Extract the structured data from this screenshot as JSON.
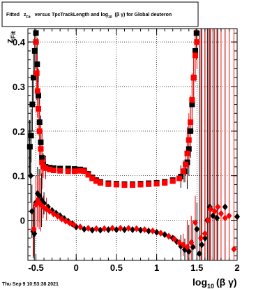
{
  "title_parts": {
    "prefix": "Fitted",
    "z": "z",
    "z_sub": "Fit",
    "middle": "versus TpcTrackLength and log",
    "log_sub": "10",
    "suffix": "(β  γ) for Global deuteron"
  },
  "y_axis_label": {
    "main": "z",
    "sub": "Fit"
  },
  "x_axis_label": {
    "main": "log",
    "sub": "10",
    "rest": "(β γ)"
  },
  "timestamp": "Thu Sep  9 10:53:38 2021",
  "chart_data": {
    "type": "scatter",
    "title": "Fitted z_Fit versus TpcTrackLength and log10(β γ) for Global deuteron",
    "xlabel": "log10(β γ)",
    "ylabel": "z_Fit",
    "xlim": [
      -0.6,
      2.0
    ],
    "ylim": [
      -0.09,
      0.43
    ],
    "x_ticks": [
      "-0.5",
      "0",
      "0.5",
      "1",
      "1.5",
      "2"
    ],
    "x_tick_values": [
      -0.5,
      0,
      0.5,
      1,
      1.5,
      2
    ],
    "y_ticks": [
      "0",
      "0.1",
      "0.2",
      "0.3",
      "0.4"
    ],
    "y_tick_values": [
      0,
      0.1,
      0.2,
      0.3,
      0.4
    ],
    "grid": true,
    "series": [
      {
        "color": "#000000",
        "marker": "square",
        "points": [
          [
            -0.575,
            0.165
          ],
          [
            -0.56,
            0.19
          ],
          [
            -0.545,
            0.26
          ],
          [
            -0.53,
            0.32
          ],
          [
            -0.515,
            0.38
          ],
          [
            -0.5,
            0.42
          ],
          [
            -0.485,
            0.35
          ],
          [
            -0.47,
            0.28
          ],
          [
            -0.455,
            0.22
          ],
          [
            -0.44,
            0.175
          ],
          [
            -0.425,
            0.14
          ],
          [
            -0.41,
            0.125
          ],
          [
            -0.38,
            0.12
          ],
          [
            -0.33,
            0.118
          ],
          [
            -0.28,
            0.117
          ],
          [
            -0.2,
            0.116
          ],
          [
            -0.1,
            0.116
          ],
          [
            -0.02,
            0.115
          ],
          [
            0.05,
            0.114
          ],
          [
            0.1,
            0.112
          ],
          [
            0.15,
            0.104
          ],
          [
            0.2,
            0.096
          ],
          [
            0.25,
            0.09
          ],
          [
            0.3,
            0.086
          ],
          [
            0.4,
            0.083
          ],
          [
            0.5,
            0.082
          ],
          [
            0.6,
            0.081
          ],
          [
            0.7,
            0.081
          ],
          [
            0.8,
            0.082
          ],
          [
            0.9,
            0.083
          ],
          [
            1.0,
            0.084
          ],
          [
            1.1,
            0.086
          ],
          [
            1.2,
            0.09
          ],
          [
            1.3,
            0.098
          ],
          [
            1.35,
            0.11
          ],
          [
            1.38,
            0.13
          ],
          [
            1.4,
            0.16
          ],
          [
            1.42,
            0.2
          ],
          [
            1.44,
            0.26
          ],
          [
            1.46,
            0.32
          ],
          [
            1.48,
            0.38
          ],
          [
            1.495,
            0.42
          ]
        ]
      },
      {
        "color": "#ff0000",
        "marker": "square",
        "points": [
          [
            -0.5,
            0.4
          ],
          [
            -0.49,
            0.33
          ],
          [
            -0.48,
            0.29
          ],
          [
            -0.47,
            0.25
          ],
          [
            -0.455,
            0.2
          ],
          [
            -0.44,
            0.16
          ],
          [
            -0.425,
            0.13
          ],
          [
            -0.41,
            0.12
          ],
          [
            -0.38,
            0.117
          ],
          [
            -0.33,
            0.114
          ],
          [
            -0.28,
            0.112
          ],
          [
            -0.2,
            0.111
          ],
          [
            -0.1,
            0.11
          ],
          [
            -0.02,
            0.11
          ],
          [
            0.05,
            0.111
          ],
          [
            0.1,
            0.11
          ],
          [
            0.15,
            0.102
          ],
          [
            0.2,
            0.094
          ],
          [
            0.25,
            0.088
          ],
          [
            0.3,
            0.084
          ],
          [
            0.4,
            0.081
          ],
          [
            0.5,
            0.08
          ],
          [
            0.6,
            0.079
          ],
          [
            0.7,
            0.079
          ],
          [
            0.8,
            0.08
          ],
          [
            0.9,
            0.081
          ],
          [
            1.0,
            0.082
          ],
          [
            1.1,
            0.084
          ],
          [
            1.2,
            0.088
          ],
          [
            1.28,
            0.094
          ],
          [
            1.33,
            0.11
          ],
          [
            1.36,
            0.125
          ],
          [
            1.38,
            0.15
          ],
          [
            1.4,
            0.18
          ],
          [
            1.42,
            0.22
          ],
          [
            1.44,
            0.27
          ],
          [
            1.46,
            0.32
          ],
          [
            1.48,
            0.37
          ],
          [
            1.5,
            0.4
          ]
        ]
      },
      {
        "color": "#000000",
        "marker": "diamond",
        "points": [
          [
            -0.58,
            0.165
          ],
          [
            -0.565,
            0.1
          ],
          [
            -0.55,
            0.02
          ],
          [
            -0.535,
            -0.025
          ],
          [
            -0.52,
            -0.03
          ],
          [
            -0.5,
            0.04
          ],
          [
            -0.48,
            0.06
          ],
          [
            -0.46,
            0.055
          ],
          [
            -0.43,
            0.045
          ],
          [
            -0.4,
            0.038
          ],
          [
            -0.35,
            0.03
          ],
          [
            -0.3,
            0.022
          ],
          [
            -0.25,
            0.016
          ],
          [
            -0.2,
            0.01
          ],
          [
            -0.15,
            0.004
          ],
          [
            -0.1,
            -0.002
          ],
          [
            -0.05,
            -0.008
          ],
          [
            0.0,
            -0.015
          ],
          [
            0.1,
            -0.02
          ],
          [
            0.2,
            -0.022
          ],
          [
            0.3,
            -0.022
          ],
          [
            0.4,
            -0.021
          ],
          [
            0.5,
            -0.021
          ],
          [
            0.6,
            -0.021
          ],
          [
            0.7,
            -0.021
          ],
          [
            0.8,
            -0.022
          ],
          [
            0.9,
            -0.024
          ],
          [
            1.0,
            -0.027
          ],
          [
            1.1,
            -0.032
          ],
          [
            1.2,
            -0.04
          ],
          [
            1.25,
            -0.048
          ],
          [
            1.3,
            -0.058
          ],
          [
            1.35,
            -0.066
          ],
          [
            1.4,
            -0.07
          ],
          [
            1.45,
            -0.06
          ],
          [
            1.5,
            -0.02
          ],
          [
            1.53,
            -0.075
          ],
          [
            1.56,
            -0.055
          ],
          [
            1.6,
            -0.04
          ],
          [
            1.63,
            -0.0
          ],
          [
            1.66,
            0.03
          ],
          [
            1.7,
            0.01
          ],
          [
            1.75,
            0.005
          ],
          [
            1.85,
            0.03
          ],
          [
            2.0,
            0.008
          ]
        ]
      },
      {
        "color": "#ff0000",
        "marker": "diamond",
        "points": [
          [
            -0.53,
            -0.02
          ],
          [
            -0.5,
            0.035
          ],
          [
            -0.48,
            0.045
          ],
          [
            -0.46,
            0.04
          ],
          [
            -0.44,
            0.035
          ],
          [
            -0.41,
            0.03
          ],
          [
            -0.37,
            0.025
          ],
          [
            -0.33,
            0.02
          ],
          [
            -0.28,
            0.014
          ],
          [
            -0.23,
            0.009
          ],
          [
            -0.18,
            0.003
          ],
          [
            -0.13,
            -0.002
          ],
          [
            -0.08,
            -0.006
          ],
          [
            -0.03,
            -0.01
          ],
          [
            0.05,
            -0.015
          ],
          [
            0.15,
            -0.018
          ],
          [
            0.25,
            -0.019
          ],
          [
            0.35,
            -0.019
          ],
          [
            0.45,
            -0.018
          ],
          [
            0.55,
            -0.018
          ],
          [
            0.65,
            -0.018
          ],
          [
            0.75,
            -0.019
          ],
          [
            0.85,
            -0.021
          ],
          [
            0.95,
            -0.024
          ],
          [
            1.05,
            -0.029
          ],
          [
            1.15,
            -0.036
          ],
          [
            1.22,
            -0.042
          ],
          [
            1.28,
            -0.05
          ],
          [
            1.33,
            -0.055
          ],
          [
            1.38,
            -0.06
          ],
          [
            1.43,
            -0.05
          ],
          [
            1.48,
            -0.005
          ],
          [
            1.55,
            -0.04
          ],
          [
            1.6,
            -0.03
          ],
          [
            1.64,
            0.0
          ],
          [
            1.67,
            0.025
          ],
          [
            1.72,
            0.02
          ],
          [
            1.76,
            0.03
          ],
          [
            1.8,
            0.015
          ],
          [
            1.85,
            0.005
          ],
          [
            1.9,
            0.01
          ],
          [
            1.96,
            -0.065
          ]
        ]
      }
    ]
  }
}
